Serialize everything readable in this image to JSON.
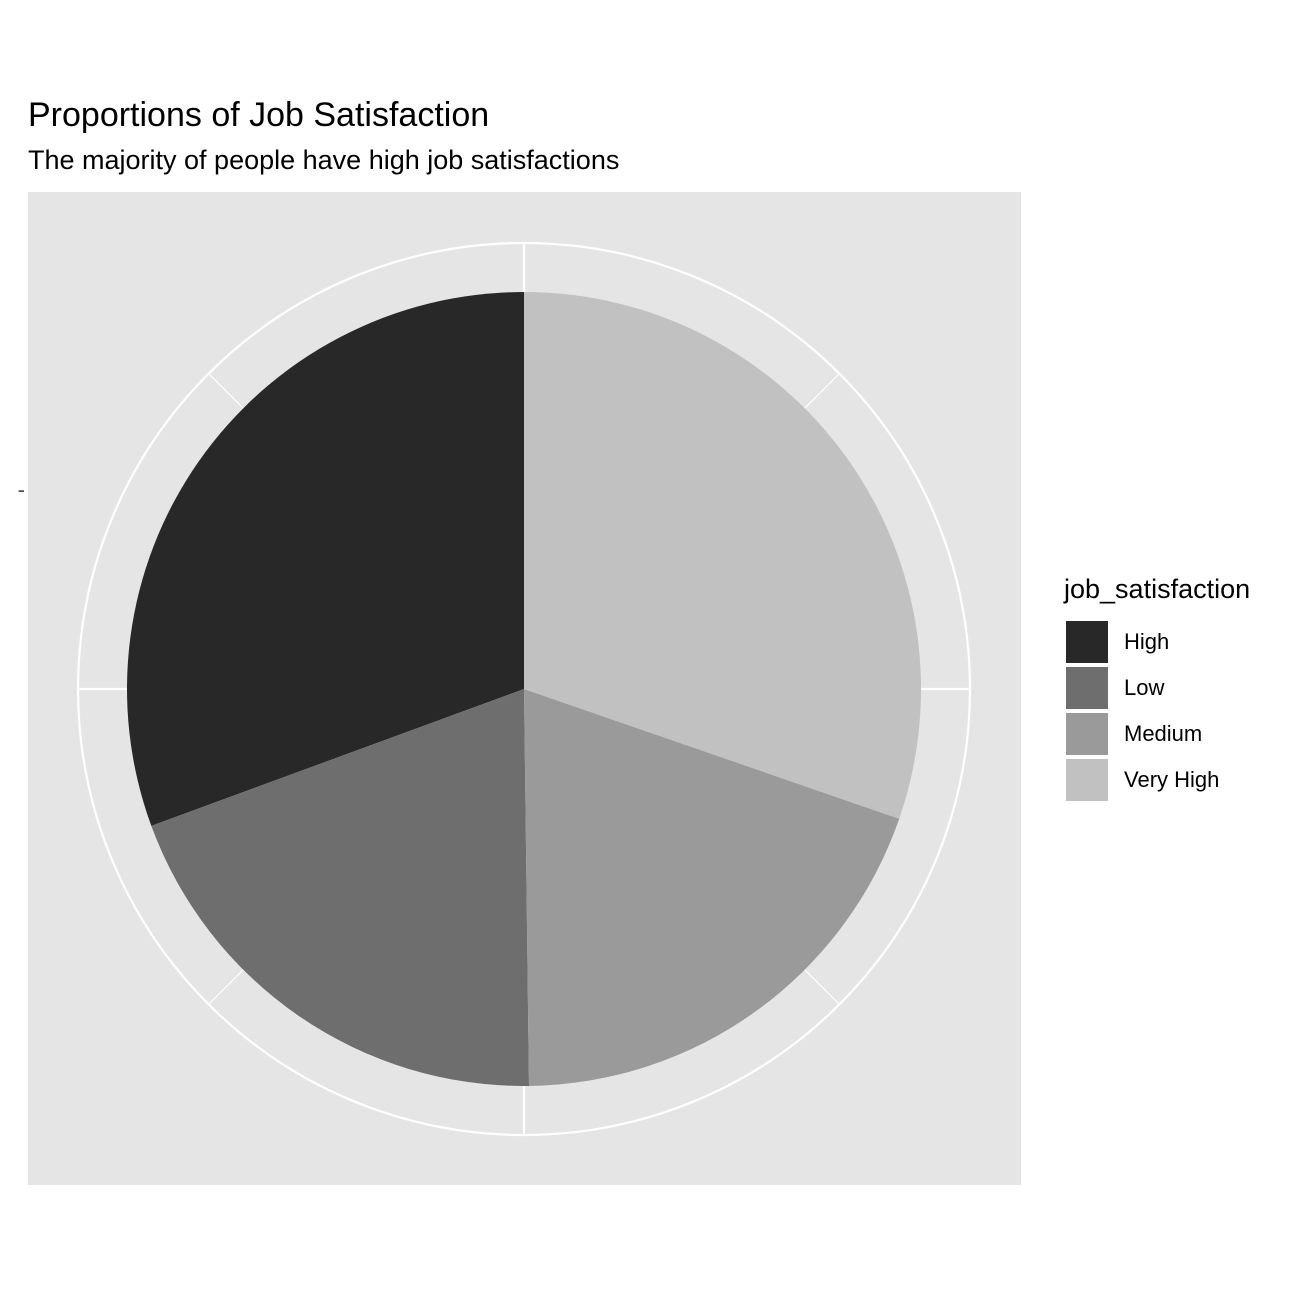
{
  "chart_data": {
    "type": "pie",
    "title": "Proportions of Job Satisfaction",
    "subtitle": "The majority of people have high job satisfactions",
    "y_tick_label": "-",
    "legend_title": "job_satisfaction",
    "legend_position": "right",
    "categories": [
      "High",
      "Low",
      "Medium",
      "Very High"
    ],
    "values": [
      30.6,
      19.6,
      19.5,
      30.3
    ],
    "colors": [
      "#282828",
      "#6e6e6e",
      "#9a9a9a",
      "#c1c1c1"
    ],
    "panel_background": "#e5e5e5",
    "grid_color": "#ffffff"
  }
}
